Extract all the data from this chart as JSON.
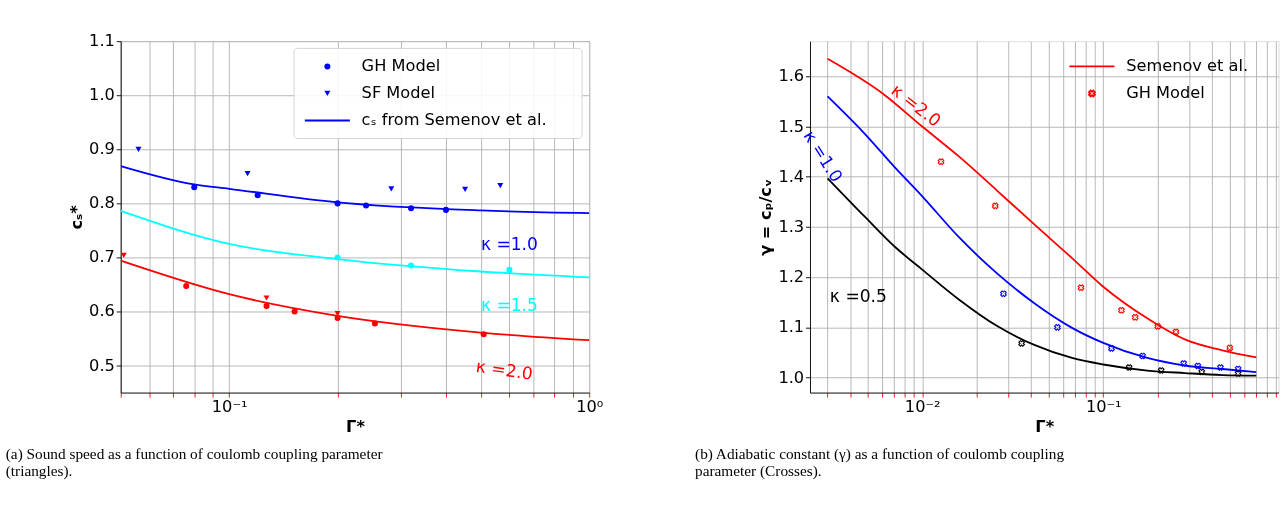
{
  "chart_data": [
    {
      "type": "scatter",
      "xlabel": "Γ*",
      "ylabel": "cₛ*",
      "log": "x",
      "grid": true,
      "legend": "top right",
      "xlim": [
        0.05,
        1.0
      ],
      "ylim": [
        0.45,
        1.1
      ],
      "xticks": [
        {
          "value": 0.05,
          "label": null
        },
        {
          "value": 0.06,
          "label": null
        },
        {
          "value": 0.07,
          "label": null
        },
        {
          "value": 0.08,
          "label": null
        },
        {
          "value": 0.09,
          "label": null
        },
        {
          "value": 0.1,
          "label": "10⁻¹"
        },
        {
          "value": 0.2,
          "label": null
        },
        {
          "value": 0.3,
          "label": null
        },
        {
          "value": 0.4,
          "label": null
        },
        {
          "value": 0.5,
          "label": null
        },
        {
          "value": 0.6,
          "label": null
        },
        {
          "value": 0.7,
          "label": null
        },
        {
          "value": 0.8,
          "label": null
        },
        {
          "value": 0.9,
          "label": null
        },
        {
          "value": 1.0,
          "label": "10⁰"
        }
      ],
      "yticks": [
        0.5,
        0.6,
        0.7,
        0.8,
        0.9,
        {
          "value": 1.0,
          "label": "1.0"
        },
        1.1
      ],
      "series": [
        {
          "name": "GH Model",
          "type": "scatter",
          "marker": "circle",
          "color": "#0000ff",
          "x": [
            0.08,
            0.12,
            0.2,
            0.24,
            0.32,
            0.4
          ],
          "values": [
            0.83,
            0.815,
            0.8,
            0.796,
            0.791,
            0.788
          ]
        },
        {
          "name": "SF Model",
          "type": "scatter",
          "marker": "triangle",
          "color": "#0000ff",
          "x": [
            0.056,
            0.1125,
            0.282,
            0.452,
            0.566
          ],
          "values": [
            0.9,
            0.855,
            0.827,
            0.826,
            0.833
          ]
        },
        {
          "name": "cₛ from Semenov et al.",
          "type": "line",
          "marker": "none",
          "color": "#0000ff",
          "x": [
            0.05,
            0.08,
            0.1,
            0.2,
            0.5,
            1.0
          ],
          "values": [
            0.869,
            0.835,
            0.827,
            0.802,
            0.787,
            0.782
          ]
        },
        {
          "type": "line",
          "marker": "none",
          "color": "#00ffff",
          "x": [
            0.05,
            0.1,
            0.2,
            0.5,
            1.0
          ],
          "values": [
            0.786,
            0.725,
            0.697,
            0.674,
            0.663
          ]
        },
        {
          "type": "scatter",
          "marker": "circle",
          "color": "#00ffff",
          "x": [
            0.2,
            0.32,
            0.6
          ],
          "values": [
            0.7,
            0.685,
            0.677
          ]
        },
        {
          "type": "line",
          "marker": "none",
          "color": "#ff0000",
          "x": [
            0.05,
            0.1,
            0.2,
            0.5,
            1.0
          ],
          "values": [
            0.694,
            0.632,
            0.592,
            0.561,
            0.547
          ]
        },
        {
          "type": "scatter",
          "marker": "circle",
          "color": "#ff0000",
          "x": [
            0.076,
            0.127,
            0.152,
            0.2,
            0.254,
            0.509
          ],
          "values": [
            0.647,
            0.61,
            0.6,
            0.588,
            0.578,
            0.558
          ]
        },
        {
          "type": "scatter",
          "marker": "triangle",
          "color": "#ff0000",
          "x": [
            0.051,
            0.127,
            0.2
          ],
          "values": [
            0.704,
            0.625,
            0.596
          ]
        }
      ],
      "annotations": [
        {
          "text": "κ =1.0",
          "x": 0.5,
          "y": 0.787
        },
        {
          "text": "κ =1.5",
          "x": 0.5,
          "y": 0.674
        },
        {
          "text": "κ =2.0",
          "x": 0.5,
          "y": 0.561
        },
        "(a) Sound speed as a function of coulomb coupling parameter (triangles)."
      ]
    },
    {
      "type": "line",
      "xlabel": "Γ*",
      "ylabel": "γ = cₚ/cᵥ",
      "log": "x",
      "grid": true,
      "legend": "top right",
      "xlim": [
        0.0024,
        0.93
      ],
      "ylim": [
        0.97,
        1.67
      ],
      "xticks": [
        {
          "value": 0.003,
          "label": null
        },
        {
          "value": 0.004,
          "label": null
        },
        {
          "value": 0.005,
          "label": null
        },
        {
          "value": 0.006,
          "label": null
        },
        {
          "value": 0.007,
          "label": null
        },
        {
          "value": 0.008,
          "label": null
        },
        {
          "value": 0.009,
          "label": null
        },
        {
          "value": 0.01,
          "label": "10⁻²"
        },
        {
          "value": 0.02,
          "label": null
        },
        {
          "value": 0.03,
          "label": null
        },
        {
          "value": 0.04,
          "label": null
        },
        {
          "value": 0.05,
          "label": null
        },
        {
          "value": 0.06,
          "label": null
        },
        {
          "value": 0.07,
          "label": null
        },
        {
          "value": 0.08,
          "label": null
        },
        {
          "value": 0.09,
          "label": null
        },
        {
          "value": 0.1,
          "label": "10⁻¹"
        },
        {
          "value": 0.2,
          "label": null
        },
        {
          "value": 0.3,
          "label": null
        },
        {
          "value": 0.4,
          "label": null
        },
        {
          "value": 0.5,
          "label": null
        },
        {
          "value": 0.6,
          "label": null
        },
        {
          "value": 0.7,
          "label": null
        },
        {
          "value": 0.8,
          "label": null
        },
        {
          "value": 0.9,
          "label": null
        }
      ],
      "yticks": [
        {
          "value": 1.0,
          "label": "1.0"
        },
        1.1,
        1.2,
        1.3,
        1.4,
        1.5,
        1.6
      ],
      "series": [
        {
          "name": "Semenov et al.",
          "type": "line",
          "marker": "none",
          "color": "#ff0000",
          "x": [
            0.003,
            0.00614,
            0.01,
            0.016,
            0.0258,
            0.0416,
            0.0672,
            0.1,
            0.175,
            0.282,
            0.455,
            0.7
          ],
          "values": [
            1.635,
            1.564,
            1.5,
            1.44,
            1.373,
            1.305,
            1.238,
            1.181,
            1.118,
            1.076,
            1.054,
            1.04
          ]
        },
        {
          "name": "GH Model",
          "type": "scatter",
          "marker": "cross",
          "color": "#ff0000",
          "x": [
            0.0127,
            0.0253,
            0.0753,
            0.126,
            0.15,
            0.2,
            0.252,
            0.5
          ],
          "values": [
            1.43,
            1.342,
            1.179,
            1.134,
            1.12,
            1.102,
            1.091,
            1.059
          ]
        },
        {
          "type": "line",
          "marker": "none",
          "color": "#0000ff",
          "x": [
            0.003,
            0.00483,
            0.00708,
            0.01,
            0.016,
            0.0258,
            0.0416,
            0.0672,
            0.1,
            0.175,
            0.282,
            0.455,
            0.7
          ],
          "values": [
            1.56,
            1.485,
            1.418,
            1.361,
            1.279,
            1.208,
            1.148,
            1.099,
            1.069,
            1.039,
            1.024,
            1.017,
            1.011
          ]
        },
        {
          "type": "scatter",
          "marker": "cross",
          "color": "#0000ff",
          "x": [
            0.0281,
            0.0558,
            0.111,
            0.165,
            0.278,
            0.333,
            0.444,
            0.556
          ],
          "values": [
            1.167,
            1.1,
            1.058,
            1.043,
            1.028,
            1.023,
            1.02,
            1.017
          ]
        },
        {
          "type": "line",
          "marker": "none",
          "color": "#000000",
          "x": [
            0.003,
            0.00483,
            0.00708,
            0.01,
            0.016,
            0.0258,
            0.0416,
            0.0672,
            0.1,
            0.175,
            0.282,
            0.455,
            0.7
          ],
          "values": [
            1.397,
            1.32,
            1.26,
            1.215,
            1.155,
            1.103,
            1.065,
            1.039,
            1.026,
            1.014,
            1.009,
            1.005,
            1.004
          ]
        },
        {
          "type": "scatter",
          "marker": "cross",
          "color": "#000000",
          "x": [
            0.0354,
            0.139,
            0.209,
            0.35,
            0.556
          ],
          "values": [
            1.068,
            1.02,
            1.014,
            1.011,
            1.008
          ]
        }
      ],
      "annotations": [
        {
          "text": "κ =2.0",
          "x": 0.00614,
          "y": 1.564
        },
        {
          "text": "κ =1.0",
          "x": 0.003,
          "y": 1.56
        },
        "κ =0.5",
        "(b) Adiabatic constant (γ) as a function of coulomb coupling parameter (Crosses)."
      ]
    }
  ]
}
